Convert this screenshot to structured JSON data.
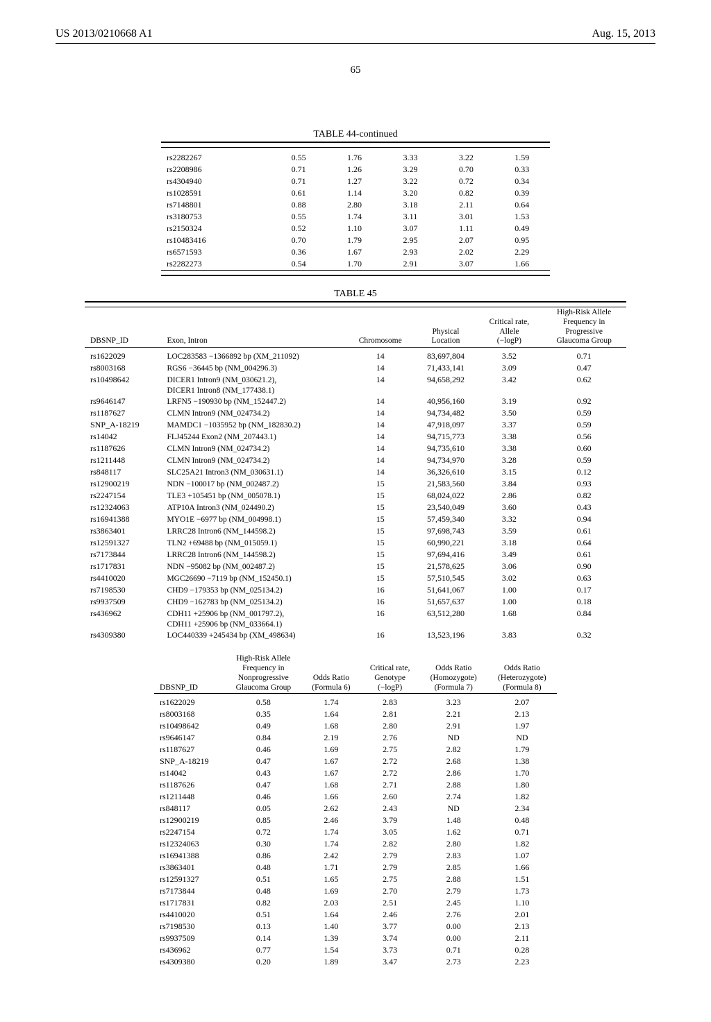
{
  "header": {
    "left": "US 2013/0210668 A1",
    "right": "Aug. 15, 2013"
  },
  "page_number": "65",
  "table44": {
    "title": "TABLE 44-continued",
    "rows": [
      {
        "id": "rs2282267",
        "c1": "0.55",
        "c2": "1.76",
        "c3": "3.33",
        "c4": "3.22",
        "c5": "1.59"
      },
      {
        "id": "rs2208986",
        "c1": "0.71",
        "c2": "1.26",
        "c3": "3.29",
        "c4": "0.70",
        "c5": "0.33"
      },
      {
        "id": "rs4304940",
        "c1": "0.71",
        "c2": "1.27",
        "c3": "3.22",
        "c4": "0.72",
        "c5": "0.34"
      },
      {
        "id": "rs1028591",
        "c1": "0.61",
        "c2": "1.14",
        "c3": "3.20",
        "c4": "0.82",
        "c5": "0.39"
      },
      {
        "id": "rs7148801",
        "c1": "0.88",
        "c2": "2.80",
        "c3": "3.18",
        "c4": "2.11",
        "c5": "0.64"
      },
      {
        "id": "rs3180753",
        "c1": "0.55",
        "c2": "1.74",
        "c3": "3.11",
        "c4": "3.01",
        "c5": "1.53"
      },
      {
        "id": "rs2150324",
        "c1": "0.52",
        "c2": "1.10",
        "c3": "3.07",
        "c4": "1.11",
        "c5": "0.49"
      },
      {
        "id": "rs10483416",
        "c1": "0.70",
        "c2": "1.79",
        "c3": "2.95",
        "c4": "2.07",
        "c5": "0.95"
      },
      {
        "id": "rs6571593",
        "c1": "0.36",
        "c2": "1.67",
        "c3": "2.93",
        "c4": "2.02",
        "c5": "2.29"
      },
      {
        "id": "rs2282273",
        "c1": "0.54",
        "c2": "1.70",
        "c3": "2.91",
        "c4": "3.07",
        "c5": "1.66"
      }
    ]
  },
  "table45a": {
    "title": "TABLE 45",
    "headers": {
      "h1": "DBSNP_ID",
      "h2": "Exon, Intron",
      "h3": "Chromosome",
      "h4": "Physical\nLocation",
      "h5": "Critical rate,\nAllele\n(−logP)",
      "h6": "High-Risk Allele\nFrequency in\nProgressive\nGlaucoma Group"
    },
    "rows": [
      {
        "id": "rs1622029",
        "exon": "LOC283583 −1366892 bp (XM_211092)",
        "chr": "14",
        "loc": "83,697,804",
        "cr": "3.52",
        "hr": "0.71"
      },
      {
        "id": "rs8003168",
        "exon": "RGS6 −36445 bp (NM_004296.3)",
        "chr": "14",
        "loc": "71,433,141",
        "cr": "3.09",
        "hr": "0.47"
      },
      {
        "id": "rs10498642",
        "exon": "DICER1 Intron9 (NM_030621.2),",
        "chr": "14",
        "loc": "94,658,292",
        "cr": "3.42",
        "hr": "0.62"
      },
      {
        "id": "",
        "exon": "DICER1 Intron8 (NM_177438.1)",
        "chr": "",
        "loc": "",
        "cr": "",
        "hr": ""
      },
      {
        "id": "rs9646147",
        "exon": "LRFN5 −190930 bp (NM_152447.2)",
        "chr": "14",
        "loc": "40,956,160",
        "cr": "3.19",
        "hr": "0.92"
      },
      {
        "id": "rs1187627",
        "exon": "CLMN Intron9 (NM_024734.2)",
        "chr": "14",
        "loc": "94,734,482",
        "cr": "3.50",
        "hr": "0.59"
      },
      {
        "id": "SNP_A-18219",
        "exon": "MAMDC1 −1035952 bp (NM_182830.2)",
        "chr": "14",
        "loc": "47,918,097",
        "cr": "3.37",
        "hr": "0.59"
      },
      {
        "id": "rs14042",
        "exon": "FLJ45244 Exon2 (NM_207443.1)",
        "chr": "14",
        "loc": "94,715,773",
        "cr": "3.38",
        "hr": "0.56"
      },
      {
        "id": "rs1187626",
        "exon": "CLMN Intron9 (NM_024734.2)",
        "chr": "14",
        "loc": "94,735,610",
        "cr": "3.38",
        "hr": "0.60"
      },
      {
        "id": "rs1211448",
        "exon": "CLMN Intron9 (NM_024734.2)",
        "chr": "14",
        "loc": "94,734,970",
        "cr": "3.28",
        "hr": "0.59"
      },
      {
        "id": "rs848117",
        "exon": "SLC25A21 Intron3 (NM_030631.1)",
        "chr": "14",
        "loc": "36,326,610",
        "cr": "3.15",
        "hr": "0.12"
      },
      {
        "id": "rs12900219",
        "exon": "NDN −100017 bp (NM_002487.2)",
        "chr": "15",
        "loc": "21,583,560",
        "cr": "3.84",
        "hr": "0.93"
      },
      {
        "id": "rs2247154",
        "exon": "TLE3 +105451 bp (NM_005078.1)",
        "chr": "15",
        "loc": "68,024,022",
        "cr": "2.86",
        "hr": "0.82"
      },
      {
        "id": "rs12324063",
        "exon": "ATP10A Intron3 (NM_024490.2)",
        "chr": "15",
        "loc": "23,540,049",
        "cr": "3.60",
        "hr": "0.43"
      },
      {
        "id": "rs16941388",
        "exon": "MYO1E −6977 bp (NM_004998.1)",
        "chr": "15",
        "loc": "57,459,340",
        "cr": "3.32",
        "hr": "0.94"
      },
      {
        "id": "rs3863401",
        "exon": "LRRC28 Intron6 (NM_144598.2)",
        "chr": "15",
        "loc": "97,698,743",
        "cr": "3.59",
        "hr": "0.61"
      },
      {
        "id": "rs12591327",
        "exon": "TLN2 +69488 bp (NM_015059.1)",
        "chr": "15",
        "loc": "60,990,221",
        "cr": "3.18",
        "hr": "0.64"
      },
      {
        "id": "rs7173844",
        "exon": "LRRC28 Intron6 (NM_144598.2)",
        "chr": "15",
        "loc": "97,694,416",
        "cr": "3.49",
        "hr": "0.61"
      },
      {
        "id": "rs1717831",
        "exon": "NDN −95082 bp (NM_002487.2)",
        "chr": "15",
        "loc": "21,578,625",
        "cr": "3.06",
        "hr": "0.90"
      },
      {
        "id": "rs4410020",
        "exon": "MGC26690 −7119 bp (NM_152450.1)",
        "chr": "15",
        "loc": "57,510,545",
        "cr": "3.02",
        "hr": "0.63"
      },
      {
        "id": "rs7198530",
        "exon": "CHD9 −179353 bp (NM_025134.2)",
        "chr": "16",
        "loc": "51,641,067",
        "cr": "1.00",
        "hr": "0.17"
      },
      {
        "id": "rs9937509",
        "exon": "CHD9 −162783 bp (NM_025134.2)",
        "chr": "16",
        "loc": "51,657,637",
        "cr": "1.00",
        "hr": "0.18"
      },
      {
        "id": "rs436962",
        "exon": "CDH11 +25906 bp (NM_001797.2),",
        "chr": "16",
        "loc": "63,512,280",
        "cr": "1.68",
        "hr": "0.84"
      },
      {
        "id": "",
        "exon": "CDH11 +25906 bp (NM_033664.1)",
        "chr": "",
        "loc": "",
        "cr": "",
        "hr": ""
      },
      {
        "id": "rs4309380",
        "exon": "LOC440339 +245434 bp (XM_498634)",
        "chr": "16",
        "loc": "13,523,196",
        "cr": "3.83",
        "hr": "0.32"
      }
    ]
  },
  "table45b": {
    "headers": {
      "h1": "DBSNP_ID",
      "h2": "High-Risk Allele\nFrequency in\nNonprogressive\nGlaucoma Group",
      "h3": "Odds Ratio\n(Formula 6)",
      "h4": "Critical rate,\nGenotype\n(−logP)",
      "h5": "Odds Ratio\n(Homozygote)\n(Formula 7)",
      "h6": "Odds Ratio\n(Heterozygote)\n(Formula 8)"
    },
    "rows": [
      {
        "id": "rs1622029",
        "c1": "0.58",
        "c2": "1.74",
        "c3": "2.83",
        "c4": "3.23",
        "c5": "2.07"
      },
      {
        "id": "rs8003168",
        "c1": "0.35",
        "c2": "1.64",
        "c3": "2.81",
        "c4": "2.21",
        "c5": "2.13"
      },
      {
        "id": "rs10498642",
        "c1": "0.49",
        "c2": "1.68",
        "c3": "2.80",
        "c4": "2.91",
        "c5": "1.97"
      },
      {
        "id": "rs9646147",
        "c1": "0.84",
        "c2": "2.19",
        "c3": "2.76",
        "c4": "ND",
        "c5": "ND"
      },
      {
        "id": "rs1187627",
        "c1": "0.46",
        "c2": "1.69",
        "c3": "2.75",
        "c4": "2.82",
        "c5": "1.79"
      },
      {
        "id": "SNP_A-18219",
        "c1": "0.47",
        "c2": "1.67",
        "c3": "2.72",
        "c4": "2.68",
        "c5": "1.38"
      },
      {
        "id": "rs14042",
        "c1": "0.43",
        "c2": "1.67",
        "c3": "2.72",
        "c4": "2.86",
        "c5": "1.70"
      },
      {
        "id": "rs1187626",
        "c1": "0.47",
        "c2": "1.68",
        "c3": "2.71",
        "c4": "2.88",
        "c5": "1.80"
      },
      {
        "id": "rs1211448",
        "c1": "0.46",
        "c2": "1.66",
        "c3": "2.60",
        "c4": "2.74",
        "c5": "1.82"
      },
      {
        "id": "rs848117",
        "c1": "0.05",
        "c2": "2.62",
        "c3": "2.43",
        "c4": "ND",
        "c5": "2.34"
      },
      {
        "id": "rs12900219",
        "c1": "0.85",
        "c2": "2.46",
        "c3": "3.79",
        "c4": "1.48",
        "c5": "0.48"
      },
      {
        "id": "rs2247154",
        "c1": "0.72",
        "c2": "1.74",
        "c3": "3.05",
        "c4": "1.62",
        "c5": "0.71"
      },
      {
        "id": "rs12324063",
        "c1": "0.30",
        "c2": "1.74",
        "c3": "2.82",
        "c4": "2.80",
        "c5": "1.82"
      },
      {
        "id": "rs16941388",
        "c1": "0.86",
        "c2": "2.42",
        "c3": "2.79",
        "c4": "2.83",
        "c5": "1.07"
      },
      {
        "id": "rs3863401",
        "c1": "0.48",
        "c2": "1.71",
        "c3": "2.79",
        "c4": "2.85",
        "c5": "1.66"
      },
      {
        "id": "rs12591327",
        "c1": "0.51",
        "c2": "1.65",
        "c3": "2.75",
        "c4": "2.88",
        "c5": "1.51"
      },
      {
        "id": "rs7173844",
        "c1": "0.48",
        "c2": "1.69",
        "c3": "2.70",
        "c4": "2.79",
        "c5": "1.73"
      },
      {
        "id": "rs1717831",
        "c1": "0.82",
        "c2": "2.03",
        "c3": "2.51",
        "c4": "2.45",
        "c5": "1.10"
      },
      {
        "id": "rs4410020",
        "c1": "0.51",
        "c2": "1.64",
        "c3": "2.46",
        "c4": "2.76",
        "c5": "2.01"
      },
      {
        "id": "rs7198530",
        "c1": "0.13",
        "c2": "1.40",
        "c3": "3.77",
        "c4": "0.00",
        "c5": "2.13"
      },
      {
        "id": "rs9937509",
        "c1": "0.14",
        "c2": "1.39",
        "c3": "3.74",
        "c4": "0.00",
        "c5": "2.11"
      },
      {
        "id": "rs436962",
        "c1": "0.77",
        "c2": "1.54",
        "c3": "3.73",
        "c4": "0.71",
        "c5": "0.28"
      },
      {
        "id": "rs4309380",
        "c1": "0.20",
        "c2": "1.89",
        "c3": "3.47",
        "c4": "2.73",
        "c5": "2.23"
      }
    ]
  }
}
